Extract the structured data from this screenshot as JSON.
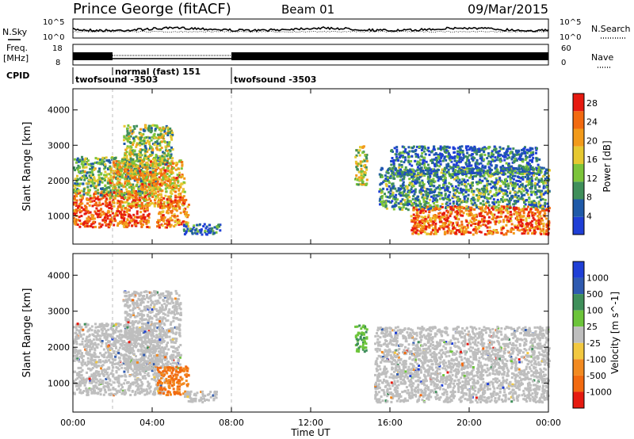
{
  "header": {
    "station": "Prince George (fitACF)",
    "beam": "Beam 01",
    "date": "09/Mar/2015"
  },
  "side_labels": {
    "n_sky": "N.Sky",
    "freq_line1": "Freq.",
    "freq_line2": "[MHz]",
    "cpid": "CPID",
    "n_search": "N.Search",
    "nave": "Nave"
  },
  "noise_panel": {
    "left_ticks": [
      "10^5",
      "10^0"
    ],
    "right_ticks": [
      "10^5",
      "10^0"
    ]
  },
  "freq_panel": {
    "left_ticks": [
      "18",
      "8"
    ],
    "right_ticks": [
      "60",
      "0"
    ]
  },
  "cpid_segments": [
    {
      "label": "twofsound -3503",
      "start_hour": 0
    },
    {
      "label": "normal (fast) 151",
      "start_hour": 2
    },
    {
      "label": "twofsound -3503",
      "start_hour": 8
    }
  ],
  "colors": {
    "power": [
      "#1f3fd6",
      "#1f5aa8",
      "#3f8f5a",
      "#7cc43a",
      "#e6c830",
      "#f29a1a",
      "#f26a10",
      "#e61a10"
    ],
    "velocity": [
      "#1f3fd6",
      "#2f5ab0",
      "#3f8f5a",
      "#6cc43a",
      "#bebebe",
      "#f2c840",
      "#f28a20",
      "#f26a10",
      "#e61a10"
    ],
    "ground_scatter": "#bebebe"
  },
  "chart_data": [
    {
      "type": "heatmap",
      "title": "Power",
      "xlabel": "",
      "ylabel": "Slant Range [km]",
      "x_ticks": [
        "00:00",
        "04:00",
        "08:00",
        "12:00",
        "16:00",
        "20:00",
        "00:00"
      ],
      "y_ticks": [
        "1000",
        "2000",
        "3000",
        "4000"
      ],
      "xlim_hours": [
        0,
        24
      ],
      "ylim_km": [
        200,
        4600
      ],
      "colorbar": {
        "label": "Power [dB]",
        "ticks": [
          "4",
          "8",
          "12",
          "16",
          "20",
          "24",
          "28"
        ],
        "range": [
          0,
          30
        ]
      },
      "blobs": [
        {
          "t0": 0.0,
          "t1": 3.8,
          "r0": 700,
          "r1": 1700,
          "level": 0.85
        },
        {
          "t0": 0.0,
          "t1": 4.2,
          "r0": 1600,
          "r1": 2700,
          "level": 0.4
        },
        {
          "t0": 1.8,
          "t1": 5.6,
          "r0": 1300,
          "r1": 2600,
          "level": 0.65
        },
        {
          "t0": 2.5,
          "t1": 5.0,
          "r0": 2400,
          "r1": 3600,
          "level": 0.45
        },
        {
          "t0": 4.2,
          "t1": 5.8,
          "r0": 700,
          "r1": 1500,
          "level": 0.75
        },
        {
          "t0": 5.5,
          "t1": 7.4,
          "r0": 500,
          "r1": 800,
          "level": 0.2
        },
        {
          "t0": 14.2,
          "t1": 14.8,
          "r0": 1900,
          "r1": 3000,
          "level": 0.5
        },
        {
          "t0": 15.4,
          "t1": 24.0,
          "r0": 1200,
          "r1": 2400,
          "level": 0.3
        },
        {
          "t0": 17.0,
          "t1": 24.0,
          "r0": 500,
          "r1": 1300,
          "level": 0.8
        },
        {
          "t0": 16.0,
          "t1": 23.5,
          "r0": 2200,
          "r1": 3000,
          "level": 0.2
        }
      ]
    },
    {
      "type": "heatmap",
      "title": "Velocity",
      "xlabel": "Time UT",
      "ylabel": "Slant Range [km]",
      "x_ticks": [
        "00:00",
        "04:00",
        "08:00",
        "12:00",
        "16:00",
        "20:00",
        "00:00"
      ],
      "y_ticks": [
        "1000",
        "2000",
        "3000",
        "4000"
      ],
      "xlim_hours": [
        0,
        24
      ],
      "ylim_km": [
        200,
        4600
      ],
      "colorbar": {
        "label": "Velocity [m s^-1]",
        "ticks": [
          "1000",
          "500",
          "100",
          "25",
          "-25",
          "-100",
          "-500",
          "-1000"
        ]
      },
      "blobs": [
        {
          "t0": 0.0,
          "t1": 4.6,
          "r0": 700,
          "r1": 2700,
          "kind": "ground"
        },
        {
          "t0": 2.5,
          "t1": 5.4,
          "r0": 1400,
          "r1": 3600,
          "kind": "ground"
        },
        {
          "t0": 4.2,
          "t1": 5.8,
          "r0": 700,
          "r1": 1500,
          "kind": "orange"
        },
        {
          "t0": 5.6,
          "t1": 7.2,
          "r0": 500,
          "r1": 800,
          "kind": "ground"
        },
        {
          "t0": 14.2,
          "t1": 14.8,
          "r0": 1900,
          "r1": 2700,
          "kind": "green"
        },
        {
          "t0": 15.2,
          "t1": 24.0,
          "r0": 500,
          "r1": 2600,
          "kind": "ground"
        }
      ]
    }
  ]
}
